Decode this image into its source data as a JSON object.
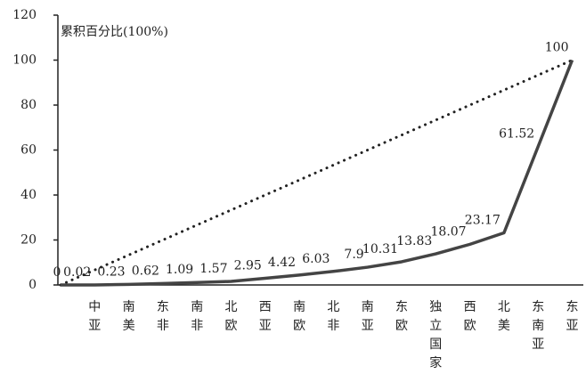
{
  "chart_data": {
    "type": "line",
    "y_label": "累积百分比(100%)",
    "categories": [
      null,
      "中亚",
      "南美",
      "东非",
      "南非",
      "北欧",
      "西亚",
      "南欧",
      "北非",
      "南亚",
      "东欧",
      "独立国家",
      "西欧",
      "北美",
      "东南亚",
      "东亚"
    ],
    "series": [
      {
        "color": "#444444",
        "values": [
          0,
          0.02,
          0.23,
          0.62,
          1.09,
          1.57,
          2.95,
          4.42,
          6.03,
          7.9,
          10.31,
          13.83,
          18.07,
          23.17,
          61.52,
          100
        ]
      }
    ],
    "reference_line": {
      "values": [
        0,
        100
      ],
      "style": "dotted",
      "color": "#222222"
    },
    "ylim": [
      0,
      120
    ],
    "yticks": [
      0,
      20,
      40,
      60,
      80,
      100,
      120
    ],
    "grid": false
  }
}
